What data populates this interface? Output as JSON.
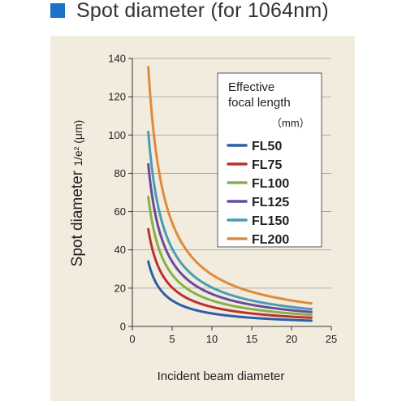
{
  "heading": {
    "title": "Spot diameter (for 1064nm)",
    "marker_color": "#1a73c7",
    "panel_color": "#f2ecde"
  },
  "chart_data": {
    "type": "line",
    "title": "Spot diameter (for 1064nm)",
    "xlabel": "Incident beam diameter",
    "ylabel_main": "Spot diameter ",
    "ylabel_sub": "1/e² (μm)",
    "xlim": [
      0,
      25
    ],
    "ylim": [
      0,
      140
    ],
    "x_ticks": [
      0,
      5,
      10,
      15,
      20,
      25
    ],
    "y_ticks": [
      0,
      20,
      40,
      60,
      80,
      100,
      120,
      140
    ],
    "grid": "horizontal",
    "legend": {
      "title_line1": "Effective",
      "title_line2": "focal length",
      "unit": "（mm）",
      "placement": "top-right"
    },
    "series": [
      {
        "name": "FL50",
        "color": "#2b5fa6",
        "x": [
          2,
          3,
          4,
          5,
          7,
          10,
          15,
          20,
          22.5
        ],
        "y": [
          33.9,
          22.6,
          16.9,
          13.5,
          9.7,
          6.8,
          4.5,
          3.4,
          3.0
        ]
      },
      {
        "name": "FL75",
        "color": "#b83232",
        "x": [
          2,
          3,
          4,
          5,
          7,
          10,
          15,
          20,
          22.5
        ],
        "y": [
          50.8,
          33.9,
          25.4,
          20.3,
          14.5,
          10.2,
          6.8,
          5.1,
          4.5
        ]
      },
      {
        "name": "FL100",
        "color": "#86b04a",
        "x": [
          2,
          3,
          4,
          5,
          7,
          10,
          15,
          20,
          22.5
        ],
        "y": [
          67.7,
          45.2,
          33.9,
          27.1,
          19.4,
          13.5,
          9.0,
          6.8,
          6.0
        ]
      },
      {
        "name": "FL125",
        "color": "#6a4a9a",
        "x": [
          2,
          3,
          4,
          5,
          7,
          10,
          15,
          20,
          22.5
        ],
        "y": [
          84.7,
          56.4,
          42.3,
          33.9,
          24.2,
          16.9,
          11.3,
          8.5,
          7.5
        ]
      },
      {
        "name": "FL150",
        "color": "#4a9cb5",
        "x": [
          2,
          3,
          4,
          5,
          7,
          10,
          15,
          20,
          22.5
        ],
        "y": [
          101.6,
          67.7,
          50.8,
          40.6,
          29.0,
          20.3,
          13.5,
          10.2,
          9.0
        ]
      },
      {
        "name": "FL200",
        "color": "#e08a3a",
        "x": [
          2,
          3,
          4,
          5,
          7,
          10,
          15,
          20,
          22.5
        ],
        "y": [
          135.5,
          90.3,
          67.7,
          54.2,
          38.7,
          27.1,
          18.1,
          13.5,
          12.0
        ]
      }
    ]
  }
}
